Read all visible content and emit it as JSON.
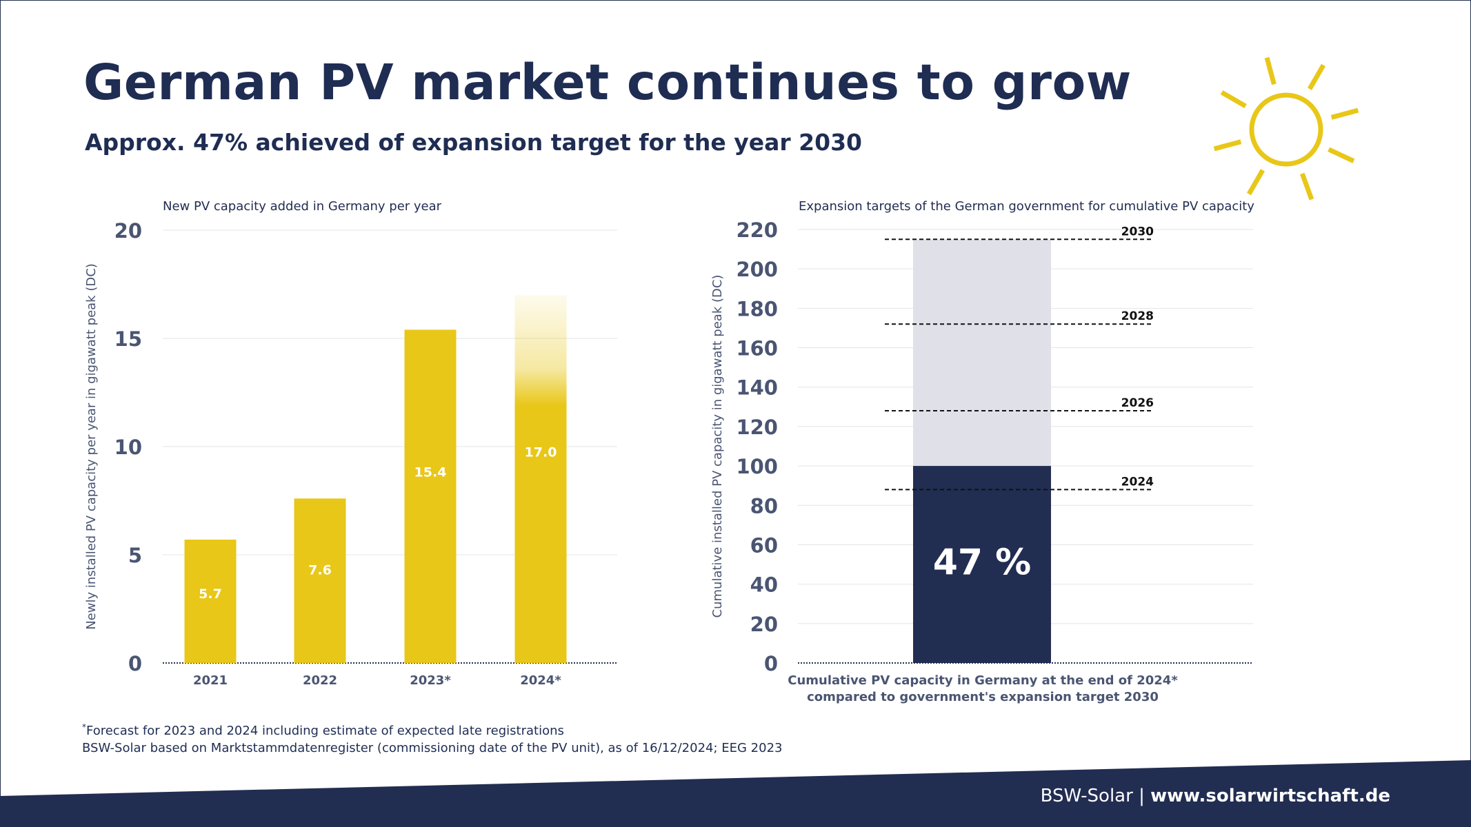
{
  "header": {
    "title": "German PV market continues to grow",
    "subtitle": "Approx. 47% achieved of expansion target for the year 2030"
  },
  "colors": {
    "navy": "#222d52",
    "yellow": "#e8c718",
    "light_gray": "#e0e0e8",
    "grid": "#e4e4e4"
  },
  "chart_data": [
    {
      "type": "bar",
      "title": "New PV capacity added in Germany per year",
      "ylabel": "Newly installed PV capacity per year in gigawatt peak (DC)",
      "xlabel": "",
      "categories": [
        "2021",
        "2022",
        "2023*",
        "2024*"
      ],
      "values": [
        5.7,
        7.6,
        15.4,
        17.0
      ],
      "labels": [
        "5.7",
        "7.6",
        "15.4",
        "17.0"
      ],
      "forecast_faded_top": [
        false,
        false,
        false,
        true
      ],
      "ylim": [
        0,
        20
      ],
      "yticks": [
        0,
        5,
        10,
        15,
        20
      ],
      "grid": true
    },
    {
      "type": "bar",
      "title": "Expansion targets of the German government for cumulative PV capacity",
      "ylabel": "Cumulative installed PV capacity in gigawatt peak (DC)",
      "xlabel_lines": [
        "Cumulative PV capacity in Germany at the end of 2024*",
        "compared to government's expansion target 2030"
      ],
      "achieved_value": 100,
      "target_value": 215,
      "achieved_label": "47 %",
      "targets": [
        {
          "label": "2030",
          "value": 215
        },
        {
          "label": "2028",
          "value": 172
        },
        {
          "label": "2026",
          "value": 128
        },
        {
          "label": "2024",
          "value": 88
        }
      ],
      "ylim": [
        0,
        220
      ],
      "yticks": [
        0,
        20,
        40,
        60,
        80,
        100,
        120,
        140,
        160,
        180,
        200,
        220
      ],
      "grid": true
    }
  ],
  "footnotes": {
    "forecast_mark": "*",
    "forecast": "Forecast for 2023 and 2024 including estimate of expected late registrations",
    "source": "BSW-Solar based on Marktstammdatenregister (commissioning date of the PV unit), as of 16/12/2024; EEG 2023"
  },
  "footer": {
    "brand": "BSW-Solar",
    "separator": "|",
    "url": "www.solarwirtschaft.de"
  },
  "icons": {
    "sun": "sun-icon"
  }
}
